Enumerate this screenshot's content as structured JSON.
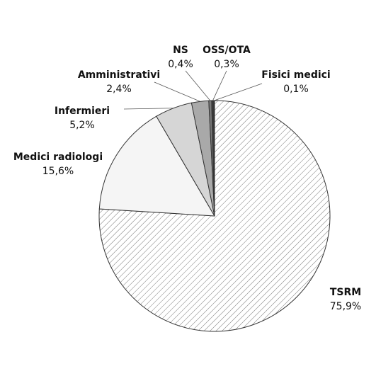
{
  "chart_data": {
    "type": "pie",
    "title": "",
    "slices": [
      {
        "label": "TSRM",
        "value_text": "75,9%",
        "value": 75.9,
        "color": "#ffffff",
        "pattern": "diagonal-hatch"
      },
      {
        "label": "Medici radiologi",
        "value_text": "15,6%",
        "value": 15.6,
        "color": "#f5f5f5",
        "pattern": "none"
      },
      {
        "label": "Infermieri",
        "value_text": "5,2%",
        "value": 5.2,
        "color": "#d6d6d6",
        "pattern": "none"
      },
      {
        "label": "Amministrativi",
        "value_text": "2,4%",
        "value": 2.4,
        "color": "#a9a9a9",
        "pattern": "none"
      },
      {
        "label": "NS",
        "value_text": "0,4%",
        "value": 0.4,
        "color": "#7a7a7a",
        "pattern": "none"
      },
      {
        "label": "OSS/OTA",
        "value_text": "0,3%",
        "value": 0.3,
        "color": "#3d3d3d",
        "pattern": "none"
      },
      {
        "label": "Fisici medici",
        "value_text": "0,1%",
        "value": 0.1,
        "color": "#111111",
        "pattern": "none"
      }
    ]
  }
}
